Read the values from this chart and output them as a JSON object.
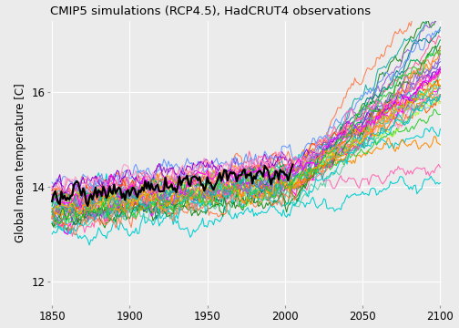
{
  "title": "CMIP5 simulations (RCP4.5), HadCRUT4 observations",
  "ylabel": "Global mean temperature [C]",
  "xlabel": "",
  "xlim": [
    1849,
    2101
  ],
  "ylim": [
    11.5,
    17.5
  ],
  "yticks": [
    12,
    14,
    16
  ],
  "xticks": [
    1850,
    1900,
    1950,
    2000,
    2050,
    2100
  ],
  "bg_color": "#EBEBEB",
  "grid_color": "#FFFFFF",
  "year_start": 1850,
  "year_end": 2100,
  "obs_color": "#000000",
  "obs_lw": 1.6,
  "sim_lw": 0.75,
  "sim_alpha": 1.0,
  "colors": [
    "#00CED1",
    "#FF69B4",
    "#FF8C00",
    "#00CED1",
    "#228B22",
    "#9966CC",
    "#FF7F50",
    "#20B2AA",
    "#FF00FF",
    "#FFA500",
    "#32CD32",
    "#9932CC",
    "#00FA9A",
    "#FF6699",
    "#87CEEB",
    "#FF4500",
    "#9999FF",
    "#3CB371",
    "#FF00FF",
    "#008080",
    "#FA8072",
    "#6699FF",
    "#ADFF2F",
    "#9400D3",
    "#00AA55",
    "#FF6600",
    "#6666CC",
    "#FF99CC",
    "#66CDAA",
    "#DAA520",
    "#00CED1",
    "#FF69B4",
    "#FF8C00",
    "#228B22",
    "#9966CC",
    "#FF7F50",
    "#20B2AA",
    "#FF00FF",
    "#FFA500",
    "#32CD32"
  ],
  "n_models": 40,
  "base_temp": 13.65,
  "hist_spread": 0.55,
  "proj_extra_spread": 1.8,
  "hist_warming": 0.6,
  "proj_warming_mean": 2.3,
  "proj_warming_std": 0.55
}
